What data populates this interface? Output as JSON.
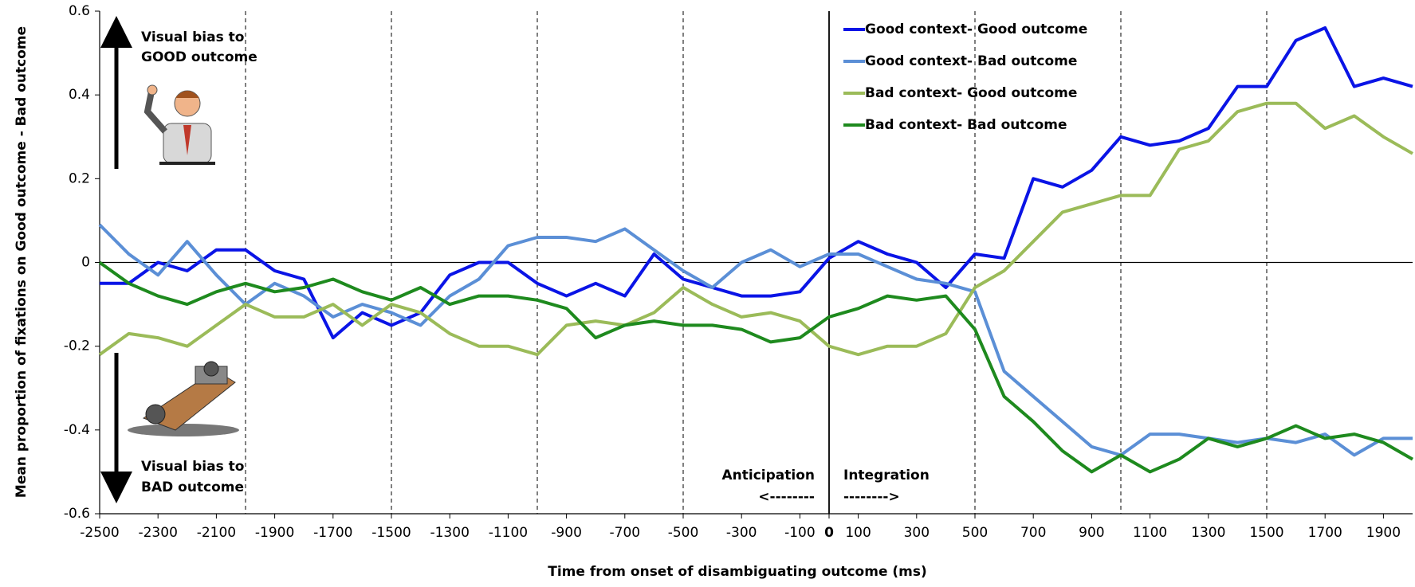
{
  "chart_data": {
    "type": "line",
    "y_label": "Mean proportion of fixations on Good outcome - Bad outcome",
    "x_label": "Time from onset of disambiguating outcome (ms)",
    "annotations": [
      "Visual bias to",
      "GOOD outcome",
      "Visual bias to",
      "BAD outcome",
      "Anticipation",
      "<--------",
      "Integration",
      "-------->"
    ],
    "x": [
      -2500,
      -2400,
      -2300,
      -2200,
      -2100,
      -2000,
      -1900,
      -1800,
      -1700,
      -1600,
      -1500,
      -1400,
      -1300,
      -1200,
      -1100,
      -1000,
      -900,
      -800,
      -700,
      -600,
      -500,
      -400,
      -300,
      -200,
      -100,
      0,
      100,
      200,
      300,
      400,
      500,
      600,
      700,
      800,
      900,
      1000,
      1100,
      1200,
      1300,
      1400,
      1500,
      1600,
      1700,
      1800,
      1900,
      2000
    ],
    "series": [
      {
        "name": "Good context- Good outcome",
        "color": "#0a14e6",
        "values": [
          -0.05,
          -0.05,
          0.0,
          -0.02,
          0.03,
          0.03,
          -0.02,
          -0.04,
          -0.18,
          -0.12,
          -0.15,
          -0.12,
          -0.03,
          0.0,
          0.0,
          -0.05,
          -0.08,
          -0.05,
          -0.08,
          0.02,
          -0.04,
          -0.06,
          -0.08,
          -0.08,
          -0.07,
          0.01,
          0.05,
          0.02,
          0.0,
          -0.06,
          0.02,
          0.01,
          0.2,
          0.18,
          0.22,
          0.3,
          0.28,
          0.29,
          0.32,
          0.42,
          0.42,
          0.53,
          0.56,
          0.42,
          0.44,
          0.42
        ]
      },
      {
        "name": "Good context- Bad outcome",
        "color": "#5b8fd6",
        "values": [
          0.09,
          0.02,
          -0.03,
          0.05,
          -0.03,
          -0.1,
          -0.05,
          -0.08,
          -0.13,
          -0.1,
          -0.12,
          -0.15,
          -0.08,
          -0.04,
          0.04,
          0.06,
          0.06,
          0.05,
          0.08,
          0.03,
          -0.02,
          -0.06,
          0.0,
          0.03,
          -0.01,
          0.02,
          0.02,
          -0.01,
          -0.04,
          -0.05,
          -0.07,
          -0.26,
          -0.32,
          -0.38,
          -0.44,
          -0.46,
          -0.41,
          -0.41,
          -0.42,
          -0.43,
          -0.42,
          -0.43,
          -0.41,
          -0.46,
          -0.42,
          -0.42
        ]
      },
      {
        "name": "Bad context- Good outcome",
        "color": "#9bbb59",
        "values": [
          -0.22,
          -0.17,
          -0.18,
          -0.2,
          -0.15,
          -0.1,
          -0.13,
          -0.13,
          -0.1,
          -0.15,
          -0.1,
          -0.12,
          -0.17,
          -0.2,
          -0.2,
          -0.22,
          -0.15,
          -0.14,
          -0.15,
          -0.12,
          -0.06,
          -0.1,
          -0.13,
          -0.12,
          -0.14,
          -0.2,
          -0.22,
          -0.2,
          -0.2,
          -0.17,
          -0.06,
          -0.02,
          0.05,
          0.12,
          0.14,
          0.16,
          0.16,
          0.27,
          0.29,
          0.36,
          0.38,
          0.38,
          0.32,
          0.35,
          0.3,
          0.26
        ]
      },
      {
        "name": "Bad context- Bad outcome",
        "color": "#1e8a1e",
        "values": [
          0.0,
          -0.05,
          -0.08,
          -0.1,
          -0.07,
          -0.05,
          -0.07,
          -0.06,
          -0.04,
          -0.07,
          -0.09,
          -0.06,
          -0.1,
          -0.08,
          -0.08,
          -0.09,
          -0.11,
          -0.18,
          -0.15,
          -0.14,
          -0.15,
          -0.15,
          -0.16,
          -0.19,
          -0.18,
          -0.13,
          -0.11,
          -0.08,
          -0.09,
          -0.08,
          -0.16,
          -0.32,
          -0.38,
          -0.45,
          -0.5,
          -0.46,
          -0.5,
          -0.47,
          -0.42,
          -0.44,
          -0.42,
          -0.39,
          -0.42,
          -0.41,
          -0.43,
          -0.47
        ]
      }
    ],
    "xlim": [
      -2500,
      2000
    ],
    "ylim": [
      -0.6,
      0.6
    ],
    "xticks": [
      -2500,
      -2300,
      -2100,
      -1900,
      -1700,
      -1500,
      -1300,
      -1100,
      -900,
      -700,
      -500,
      -300,
      -100,
      0,
      100,
      300,
      500,
      700,
      900,
      1100,
      1300,
      1500,
      1700,
      1900
    ],
    "yticks": [
      0.6,
      0.4,
      0.2,
      0,
      -0.2,
      -0.4,
      -0.6
    ],
    "reference_lines": [
      -2000,
      -1500,
      -1000,
      -500,
      500,
      1000,
      1500
    ],
    "zero_line_x": 0,
    "zero_line_y": 0
  }
}
